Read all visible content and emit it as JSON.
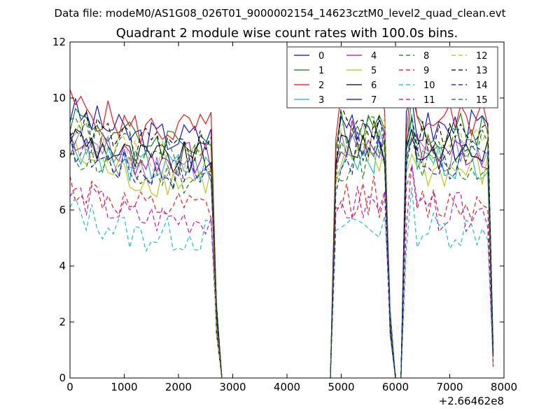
{
  "chart_data": {
    "type": "line",
    "supertitle": "Data file: modeM0/AS1G08_026T01_9000002154_14623cztM0_level2_quad_clean.evt",
    "title": "Quadrant 2 module wise count rates with 100.0s bins.",
    "xlabel": "",
    "ylabel": "",
    "x_offset_label": "+2.66462e8",
    "xlim": [
      0,
      8000
    ],
    "ylim": [
      0,
      12
    ],
    "x_ticks": [
      0,
      1000,
      2000,
      3000,
      4000,
      5000,
      6000,
      7000,
      8000
    ],
    "y_ticks": [
      0,
      2,
      4,
      6,
      8,
      10,
      12
    ],
    "grid": false,
    "legend_position": "top-right",
    "series": [
      {
        "name": "0",
        "color": "#0000ff",
        "dash": "solid",
        "baseline": 8.6
      },
      {
        "name": "1",
        "color": "#008000",
        "dash": "solid",
        "baseline": 8.5
      },
      {
        "name": "2",
        "color": "#ff0000",
        "dash": "solid",
        "baseline": 8.9
      },
      {
        "name": "3",
        "color": "#00bfbf",
        "dash": "solid",
        "baseline": 7.5
      },
      {
        "name": "4",
        "color": "#bf00bf",
        "dash": "solid",
        "baseline": 7.8
      },
      {
        "name": "5",
        "color": "#bfbf00",
        "dash": "solid",
        "baseline": 7.1
      },
      {
        "name": "6",
        "color": "#000000",
        "dash": "solid",
        "baseline": 7.8
      },
      {
        "name": "7",
        "color": "#0000ff",
        "dash": "solid",
        "baseline": 7.6
      },
      {
        "name": "8",
        "color": "#008000",
        "dash": "dashed",
        "baseline": 7.2
      },
      {
        "name": "9",
        "color": "#ff0000",
        "dash": "dashed",
        "baseline": 6.0
      },
      {
        "name": "10",
        "color": "#00bfbf",
        "dash": "dashed",
        "baseline": 5.1
      },
      {
        "name": "11",
        "color": "#bf00bf",
        "dash": "dashed",
        "baseline": 5.7
      },
      {
        "name": "12",
        "color": "#bfbf00",
        "dash": "dashed",
        "baseline": 7.9
      },
      {
        "name": "13",
        "color": "#000000",
        "dash": "dashed",
        "baseline": 8.3
      },
      {
        "name": "14",
        "color": "#0000ff",
        "dash": "dashed",
        "baseline": 7.4
      },
      {
        "name": "15",
        "color": "#008000",
        "dash": "dashed",
        "baseline": 8.0
      }
    ],
    "time_structure": {
      "bin_width_s": 100,
      "active_intervals": [
        [
          0,
          2600
        ],
        [
          4900,
          5800
        ],
        [
          6200,
          7800
        ]
      ],
      "inactive_intervals": [
        [
          2800,
          4800
        ],
        [
          5950,
          6050
        ]
      ],
      "last_x": 7800
    }
  }
}
